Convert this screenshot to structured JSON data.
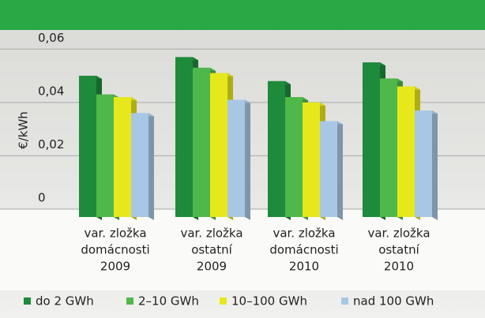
{
  "chart_data": {
    "type": "bar",
    "y_label": "€/kWh",
    "categories": [
      [
        "var. zložka",
        "domácnosti",
        "2009"
      ],
      [
        "var. zložka",
        "ostatní",
        "2009"
      ],
      [
        "var. zložka",
        "domácnosti",
        "2010"
      ],
      [
        "var. zložka",
        "ostatní",
        "2010"
      ]
    ],
    "series": [
      {
        "name": "do 2 GWh",
        "color": "#1e8a3b",
        "values": [
          0.05,
          0.057,
          0.048,
          0.055
        ]
      },
      {
        "name": "2–10 GWh",
        "color": "#4eb84a",
        "values": [
          0.043,
          0.053,
          0.042,
          0.049
        ]
      },
      {
        "name": "10–100 GWh",
        "color": "#e6e81c",
        "values": [
          0.042,
          0.051,
          0.04,
          0.046
        ]
      },
      {
        "name": "nad 100 GWh",
        "color": "#a8c7e4",
        "values": [
          0.036,
          0.041,
          0.033,
          0.037
        ]
      }
    ],
    "ylim": [
      0,
      0.066
    ],
    "yticks": [
      {
        "value": 0,
        "label": "0"
      },
      {
        "value": 0.02,
        "label": "0,02"
      },
      {
        "value": 0.04,
        "label": "0,04"
      },
      {
        "value": 0.06,
        "label": "0,06"
      }
    ],
    "grid": true
  }
}
